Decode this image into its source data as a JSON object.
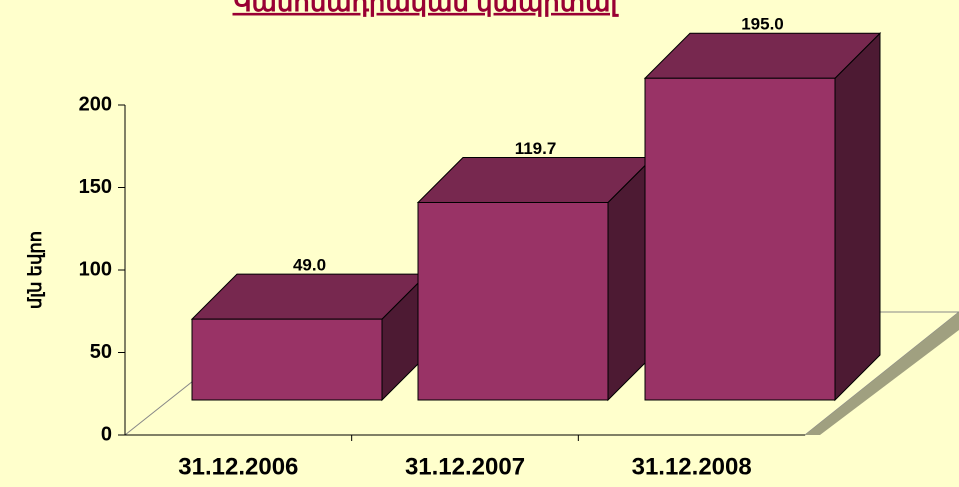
{
  "chart_data": {
    "type": "bar3d",
    "title": "Կանոնադրական կապիտալ",
    "ylabel": "մլն եվրո",
    "categories": [
      "31.12.2006",
      "31.12.2007",
      "31.12.2008"
    ],
    "values": [
      49.0,
      119.7,
      195.0
    ],
    "value_labels": [
      "49.0",
      "119.7",
      "195.0"
    ],
    "color": "#993366",
    "ylim": [
      0,
      200
    ],
    "yticks": [
      0,
      50,
      100,
      150,
      200
    ]
  }
}
